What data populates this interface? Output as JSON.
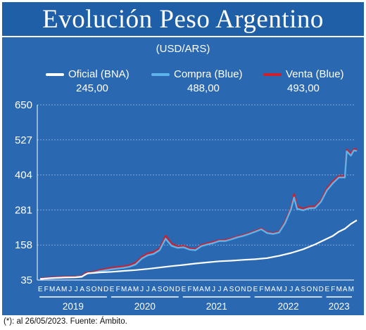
{
  "title": "Evolución Peso Argentino",
  "units": "(USD/ARS)",
  "footnote": "(*): al 26/05/2023. Fuente: Ámbito.",
  "colors": {
    "panel": "#2a68b2",
    "title_bg": "#1f5fa8",
    "oficial": "#ffffff",
    "compra": "#5eb3ea",
    "venta": "#d01f2a",
    "grid": "#7ea6d6"
  },
  "legend": [
    {
      "label": "Oficial (BNA)",
      "value": "245,00",
      "color": "#ffffff"
    },
    {
      "label": "Compra (Blue)",
      "value": "488,00",
      "color": "#5eb3ea"
    },
    {
      "label": "Venta (Blue)",
      "value": "493,00",
      "color": "#d01f2a"
    }
  ],
  "chart_data": {
    "type": "line",
    "ylim": [
      35,
      650
    ],
    "yticks": [
      "650",
      "527",
      "404",
      "281",
      "158",
      "35"
    ],
    "grid": true,
    "month_labels": [
      "E",
      "F",
      "M",
      "A",
      "M",
      "J",
      "J",
      "A",
      "S",
      "O",
      "N",
      "D",
      "E",
      "F",
      "M",
      "A",
      "M",
      "J",
      "J",
      "A",
      "S",
      "O",
      "N",
      "D",
      "E",
      "F",
      "M",
      "A",
      "M",
      "J",
      "J",
      "A",
      "S",
      "O",
      "N",
      "D",
      "E",
      "F",
      "M",
      "A",
      "M",
      "J",
      "J",
      "A",
      "S",
      "O",
      "N",
      "D",
      "E",
      "F",
      "M",
      "A",
      "M"
    ],
    "years": [
      {
        "label": "2019",
        "start": 0,
        "months": 12
      },
      {
        "label": "2020",
        "start": 12,
        "months": 12
      },
      {
        "label": "2021",
        "start": 24,
        "months": 12
      },
      {
        "label": "2022",
        "start": 36,
        "months": 12
      },
      {
        "label": "2023",
        "start": 48,
        "months": 5
      }
    ],
    "series": [
      {
        "name": "Oficial (BNA)",
        "color": "#ffffff",
        "x": [
          0,
          2,
          4,
          6,
          7,
          8,
          9,
          10,
          12,
          14,
          16,
          18,
          20,
          22,
          24,
          26,
          28,
          30,
          32,
          34,
          36,
          38,
          40,
          42,
          44,
          46,
          48,
          49,
          50,
          51,
          52,
          53
        ],
        "values": [
          39,
          42,
          44,
          45,
          47,
          59,
          60,
          62,
          64,
          67,
          70,
          74,
          79,
          84,
          88,
          93,
          97,
          101,
          103,
          106,
          108,
          112,
          120,
          130,
          143,
          160,
          180,
          190,
          205,
          215,
          232,
          245
        ]
      },
      {
        "name": "Compra (Blue)",
        "color": "#5eb3ea",
        "x": [
          0,
          2,
          4,
          6,
          7,
          7.5,
          8,
          9,
          10,
          12,
          14,
          15,
          16,
          17,
          18,
          19,
          20,
          21,
          22,
          23,
          24,
          25,
          26,
          27,
          28,
          29,
          30,
          31,
          32,
          33,
          34,
          35,
          36,
          37,
          38,
          39,
          40,
          41,
          42,
          42.5,
          43,
          44,
          45,
          46,
          47,
          48,
          49,
          50,
          51,
          51.3,
          52,
          52.5,
          53
        ],
        "values": [
          39,
          42,
          44,
          45,
          46,
          55,
          58,
          61,
          66,
          73,
          78,
          82,
          90,
          110,
          122,
          127,
          140,
          180,
          155,
          148,
          150,
          142,
          140,
          154,
          160,
          165,
          172,
          172,
          178,
          185,
          190,
          197,
          205,
          213,
          200,
          197,
          202,
          235,
          285,
          325,
          285,
          280,
          287,
          288,
          310,
          350,
          375,
          395,
          395,
          487,
          472,
          490,
          488
        ]
      },
      {
        "name": "Venta (Blue)",
        "color": "#d01f2a",
        "x": [
          0,
          2,
          4,
          6,
          7,
          7.5,
          8,
          9,
          10,
          12,
          14,
          15,
          16,
          17,
          18,
          19,
          20,
          21,
          22,
          23,
          24,
          25,
          26,
          27,
          28,
          29,
          30,
          31,
          32,
          33,
          34,
          35,
          36,
          37,
          38,
          39,
          40,
          41,
          42,
          42.5,
          43,
          44,
          45,
          46,
          47,
          48,
          49,
          50,
          51,
          51.3,
          52,
          52.5,
          53
        ],
        "values": [
          41,
          44,
          46,
          47,
          48,
          59,
          61,
          64,
          70,
          78,
          83,
          87,
          96,
          116,
          128,
          133,
          146,
          190,
          163,
          153,
          155,
          146,
          144,
          158,
          164,
          169,
          175,
          176,
          181,
          188,
          193,
          200,
          208,
          216,
          203,
          200,
          205,
          240,
          291,
          336,
          294,
          285,
          292,
          293,
          315,
          357,
          382,
          400,
          400,
          493,
          478,
          495,
          493
        ]
      }
    ]
  }
}
